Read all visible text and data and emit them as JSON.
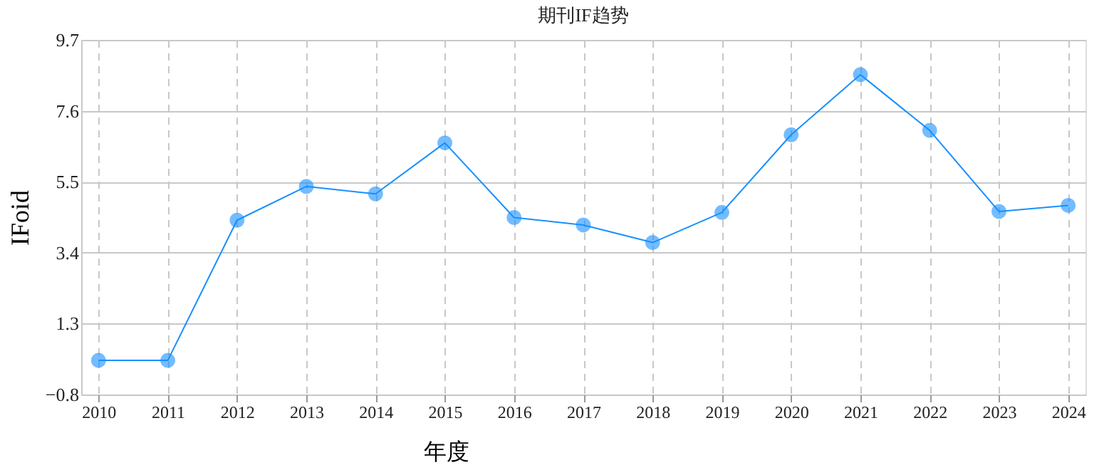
{
  "chart_data": {
    "type": "line",
    "title": "期刊IF趋势",
    "xlabel": "年度",
    "ylabel": "IFoid",
    "categories": [
      "2010",
      "2011",
      "2012",
      "2013",
      "2014",
      "2015",
      "2016",
      "2017",
      "2018",
      "2019",
      "2020",
      "2021",
      "2022",
      "2023",
      "2024"
    ],
    "series": [
      {
        "color": "#1890ff",
        "values": [
          0.21,
          0.21,
          4.36,
          5.36,
          5.14,
          6.65,
          4.44,
          4.22,
          3.7,
          4.59,
          6.89,
          8.67,
          7.02,
          4.62,
          4.8
        ]
      }
    ],
    "ylim": [
      -0.8,
      9.7
    ],
    "yticks": [
      -0.8,
      1.3,
      3.4,
      5.5,
      7.6,
      9.7
    ],
    "grid": true,
    "marker": "circle",
    "line_style": "solid"
  }
}
